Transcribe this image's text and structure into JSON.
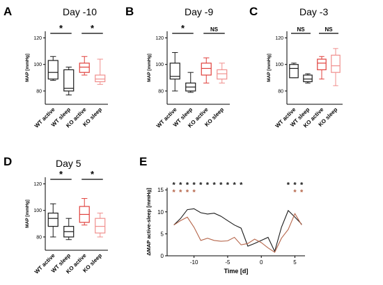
{
  "colors": {
    "wt": "#1a1a1a",
    "ko_active": "#e0403c",
    "ko_sleep": "#f08f8d",
    "line_wt": "#1a1a1a",
    "line_ko": "#b5654a",
    "star_ko": "#b5654a",
    "bg": "#ffffff"
  },
  "chart_data": [
    {
      "type": "box",
      "panel": "A",
      "title": "Day -10",
      "ylabel": "MAP [mmHg]",
      "ylim": [
        70,
        125
      ],
      "yticks": [
        80,
        100,
        120
      ],
      "categories": [
        "WT active",
        "WT sleep",
        "KO active",
        "KO sleep"
      ],
      "boxes": [
        {
          "min": 88,
          "q1": 89,
          "median": 94,
          "q3": 103,
          "max": 106
        },
        {
          "min": 77,
          "q1": 80,
          "median": 82,
          "q3": 96,
          "max": 98
        },
        {
          "min": 92,
          "q1": 94,
          "median": 98,
          "q3": 101,
          "max": 106
        },
        {
          "min": 85,
          "q1": 87,
          "median": 89,
          "q3": 92,
          "max": 104
        }
      ],
      "significance": [
        {
          "from": 0,
          "to": 1,
          "label": "*"
        },
        {
          "from": 2,
          "to": 3,
          "label": "*"
        }
      ]
    },
    {
      "type": "box",
      "panel": "B",
      "title": "Day -9",
      "ylabel": "MAP [mmHg]",
      "ylim": [
        70,
        125
      ],
      "yticks": [
        80,
        100,
        120
      ],
      "categories": [
        "WT active",
        "WT sleep",
        "KO active",
        "KO sleep"
      ],
      "boxes": [
        {
          "min": 80,
          "q1": 89,
          "median": 91,
          "q3": 101,
          "max": 109
        },
        {
          "min": 79,
          "q1": 80,
          "median": 83,
          "q3": 86,
          "max": 94
        },
        {
          "min": 86,
          "q1": 92,
          "median": 97,
          "q3": 101,
          "max": 105
        },
        {
          "min": 86,
          "q1": 89,
          "median": 93,
          "q3": 96,
          "max": 101
        }
      ],
      "significance": [
        {
          "from": 0,
          "to": 1,
          "label": "*"
        },
        {
          "from": 2,
          "to": 3,
          "label": "NS"
        }
      ]
    },
    {
      "type": "box",
      "panel": "C",
      "title": "Day -3",
      "ylabel": "MAP [mmHg]",
      "ylim": [
        70,
        125
      ],
      "yticks": [
        80,
        100,
        120
      ],
      "categories": [
        "WT active",
        "WT sleep",
        "KO active",
        "KO sleep"
      ],
      "boxes": [
        {
          "min": 90,
          "q1": 90,
          "median": 97,
          "q3": 100,
          "max": 101
        },
        {
          "min": 86,
          "q1": 87,
          "median": 89,
          "q3": 92,
          "max": 93
        },
        {
          "min": 89,
          "q1": 96,
          "median": 101,
          "q3": 104,
          "max": 106
        },
        {
          "min": 84,
          "q1": 94,
          "median": 99,
          "q3": 107,
          "max": 112
        }
      ],
      "significance": [
        {
          "from": 0,
          "to": 1,
          "label": "NS"
        },
        {
          "from": 2,
          "to": 3,
          "label": "NS"
        }
      ]
    },
    {
      "type": "box",
      "panel": "D",
      "title": "Day 5",
      "ylabel": "MAP [mmHg]",
      "ylim": [
        70,
        125
      ],
      "yticks": [
        80,
        100,
        120
      ],
      "categories": [
        "WT active",
        "WT sleep",
        "KO active",
        "KO sleep"
      ],
      "boxes": [
        {
          "min": 80,
          "q1": 88,
          "median": 94,
          "q3": 98,
          "max": 105
        },
        {
          "min": 78,
          "q1": 80,
          "median": 84,
          "q3": 88,
          "max": 94
        },
        {
          "min": 89,
          "q1": 91,
          "median": 97,
          "q3": 103,
          "max": 109
        },
        {
          "min": 80,
          "q1": 83,
          "median": 88,
          "q3": 94,
          "max": 98
        }
      ],
      "significance": [
        {
          "from": 0,
          "to": 1,
          "label": "*"
        },
        {
          "from": 2,
          "to": 3,
          "label": "*"
        }
      ]
    },
    {
      "type": "line",
      "panel": "E",
      "xlabel": "Time [d]",
      "ylabel": "ΔMAP active-sleep [mmHg]",
      "xlim": [
        -14,
        6.5
      ],
      "ylim": [
        0,
        15.5
      ],
      "xticks": [
        -10,
        -5,
        0,
        5
      ],
      "yticks": [
        0,
        5,
        10,
        15
      ],
      "series": [
        {
          "key": "WT",
          "x": [
            -13,
            -12,
            -11,
            -10,
            -9,
            -8,
            -7,
            -6,
            -5,
            -4,
            -3,
            -2,
            -1,
            0,
            1,
            2,
            3,
            4,
            5,
            6
          ],
          "y": [
            7,
            8.5,
            10.5,
            10.7,
            9.8,
            9.5,
            9.7,
            9.0,
            8.0,
            7.0,
            6.3,
            2.2,
            2.8,
            3.5,
            4.2,
            1.0,
            6.5,
            10.3,
            8.8,
            7.2
          ]
        },
        {
          "key": "KO",
          "x": [
            -13,
            -12,
            -11,
            -10,
            -9,
            -8,
            -7,
            -6,
            -5,
            -4,
            -3,
            -2,
            -1,
            0,
            1,
            2,
            3,
            4,
            5,
            6
          ],
          "y": [
            7,
            8.0,
            8.8,
            6.5,
            3.5,
            4.0,
            3.5,
            3.3,
            3.4,
            4.2,
            2.5,
            2.8,
            3.8,
            3.0,
            1.8,
            0.8,
            4.0,
            6.0,
            9.6,
            7.0
          ]
        }
      ],
      "significance_wt": {
        "label": "*",
        "x": [
          -13,
          -12,
          -11,
          -10,
          -9,
          -8,
          -7,
          -6,
          -5,
          -4,
          -3,
          4,
          5,
          6
        ]
      },
      "significance_ko": {
        "label": "*",
        "x": [
          -13,
          -12,
          -11,
          -10,
          5,
          6
        ]
      }
    }
  ]
}
